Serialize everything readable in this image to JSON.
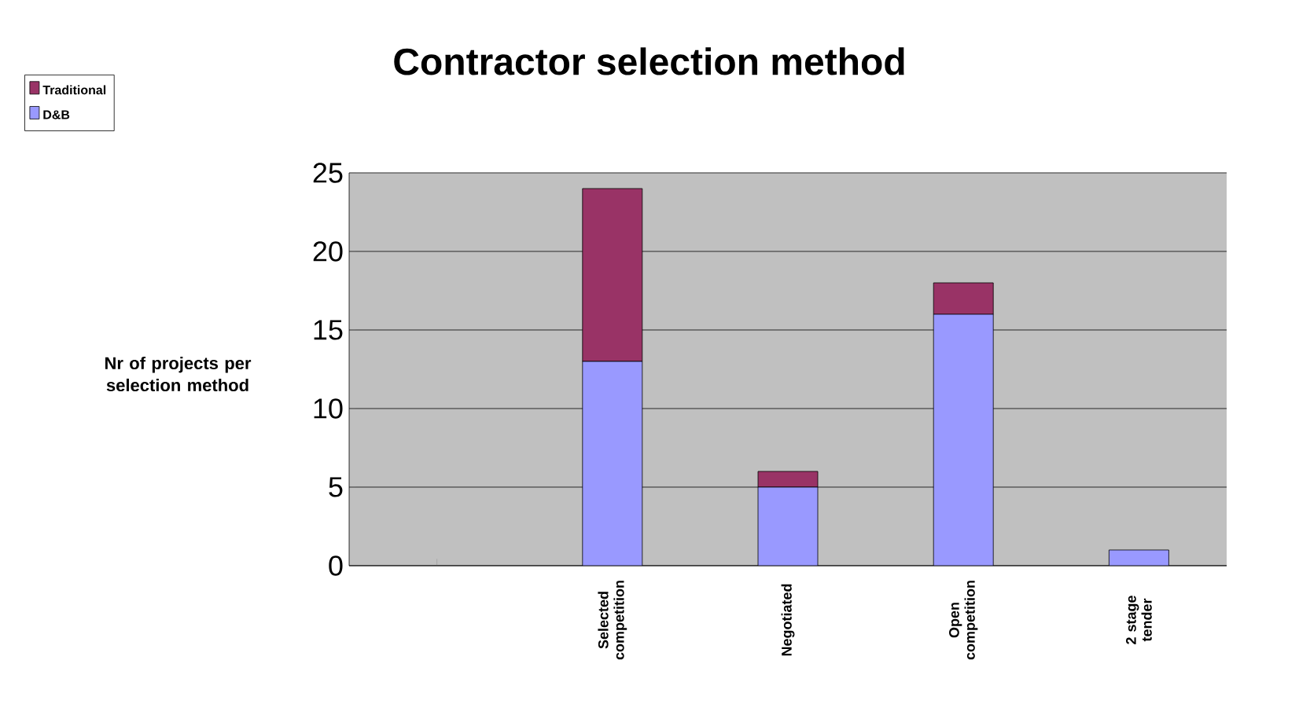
{
  "chart_data": {
    "type": "bar",
    "title": "Contractor selection method",
    "ylabel": "Nr of projects per selection method",
    "categories": [
      null,
      "Selected competition",
      "Negotiated",
      "Open competition",
      "2 stage tender"
    ],
    "series": [
      {
        "name": "D&B",
        "color": "#9999ff",
        "values": [
          null,
          13,
          5,
          16,
          1
        ]
      },
      {
        "name": "Traditional",
        "color": "#993366",
        "values": [
          null,
          11,
          1,
          2,
          0
        ]
      }
    ],
    "stacked": true,
    "ylim": [
      0,
      25
    ],
    "yticks": [
      0,
      5,
      10,
      15,
      20,
      25
    ],
    "grid": "y",
    "legend": "top left"
  }
}
